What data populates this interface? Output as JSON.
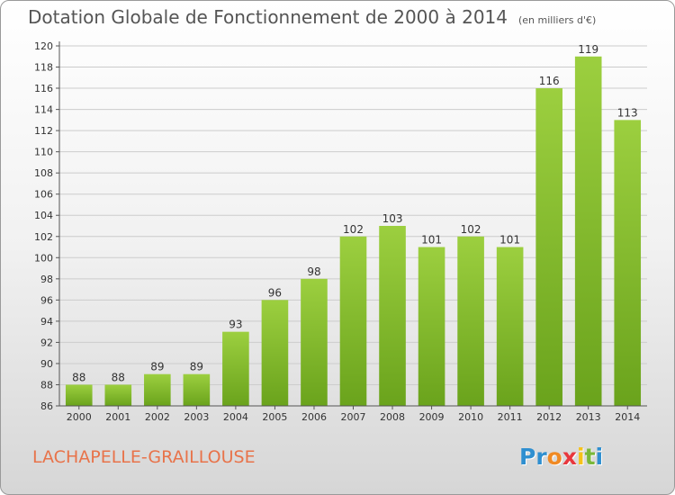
{
  "title": "Dotation Globale de Fonctionnement de 2000 à 2014",
  "unit_note": "(en milliers d'€)",
  "commune": "LACHAPELLE-GRAILLOUSE",
  "logo": {
    "letters": [
      "P",
      "r",
      "o",
      "x",
      "i",
      "t",
      "i"
    ],
    "colors": [
      "#2f8fd0",
      "#2f8fd0",
      "#f08a24",
      "#e8373d",
      "#f6c21a",
      "#7ab83a",
      "#2f8fd0"
    ]
  },
  "colors": {
    "bar_light": "#9ccf3f",
    "bar_dark": "#6aa31c",
    "grid": "#cccccc",
    "text": "#333333"
  },
  "chart_data": {
    "type": "bar",
    "title": "Dotation Globale de Fonctionnement de 2000 à 2014",
    "categories": [
      "2000",
      "2001",
      "2002",
      "2003",
      "2004",
      "2005",
      "2006",
      "2007",
      "2008",
      "2009",
      "2010",
      "2011",
      "2012",
      "2013",
      "2014"
    ],
    "values": [
      88,
      88,
      89,
      89,
      93,
      96,
      98,
      102,
      103,
      101,
      102,
      101,
      116,
      119,
      113
    ],
    "ylim": [
      86,
      120
    ],
    "yticks": [
      86,
      88,
      90,
      92,
      94,
      96,
      98,
      100,
      102,
      104,
      106,
      108,
      110,
      112,
      114,
      116,
      118,
      120
    ],
    "grid": true,
    "data_labels": true
  }
}
